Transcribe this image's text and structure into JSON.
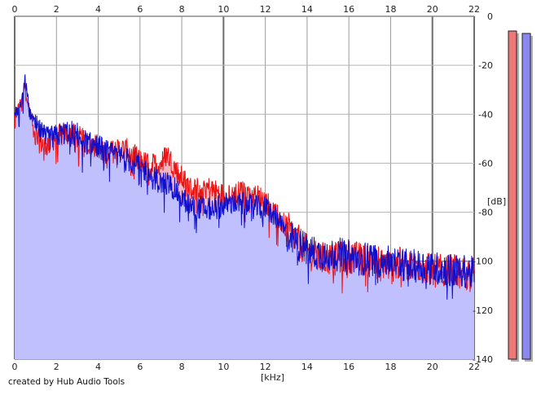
{
  "chart_data": {
    "type": "area",
    "xlabel": "[kHz]",
    "ylabel": "[dB]",
    "xlim": [
      0,
      22
    ],
    "ylim": [
      -140,
      0
    ],
    "x_ticks": [
      0,
      2,
      4,
      6,
      8,
      10,
      12,
      14,
      16,
      18,
      20,
      22
    ],
    "y_ticks": [
      0,
      -20,
      -40,
      -60,
      -80,
      -100,
      -120,
      -140
    ],
    "grid": true,
    "series": [
      {
        "color": "#ee1111",
        "x": [
          0,
          0.2,
          0.4,
          0.5,
          0.7,
          1,
          1.5,
          2,
          2.5,
          3,
          3.5,
          4,
          4.5,
          5,
          5.5,
          6,
          6.5,
          7,
          7.3,
          7.6,
          8,
          8.5,
          9,
          9.5,
          10,
          10.5,
          11,
          11.5,
          12,
          12.5,
          13,
          13.5,
          14,
          14.5,
          15,
          15.5,
          16,
          16.5,
          17,
          17.5,
          18,
          18.5,
          19,
          19.5,
          20,
          20.5,
          21,
          21.5,
          22
        ],
        "values": [
          -40,
          -37,
          -33,
          -28,
          -38,
          -50,
          -53,
          -49,
          -48,
          -49,
          -52,
          -53,
          -56,
          -54,
          -55,
          -59,
          -61,
          -60,
          -56,
          -61,
          -66,
          -71,
          -69,
          -71,
          -73,
          -72,
          -72,
          -73,
          -75,
          -81,
          -86,
          -91,
          -96,
          -99,
          -99,
          -99,
          -98,
          -99,
          -99,
          -100,
          -102,
          -101,
          -102,
          -102,
          -104,
          -104,
          -104,
          -105,
          -105
        ]
      },
      {
        "color": "#1010cc",
        "x": [
          0,
          0.2,
          0.4,
          0.5,
          0.7,
          1,
          1.5,
          2,
          2.5,
          3,
          3.5,
          4,
          4.5,
          5,
          5.5,
          6,
          6.5,
          7,
          7.3,
          7.6,
          8,
          8.5,
          9,
          9.5,
          10,
          10.5,
          11,
          11.5,
          12,
          12.5,
          13,
          13.5,
          14,
          14.5,
          15,
          15.5,
          16,
          16.5,
          17,
          17.5,
          18,
          18.5,
          19,
          19.5,
          20,
          20.5,
          21,
          21.5,
          22
        ],
        "values": [
          -40,
          -38,
          -32,
          -26,
          -38,
          -45,
          -50,
          -49,
          -47,
          -48,
          -52,
          -53,
          -56,
          -57,
          -59,
          -61,
          -65,
          -68,
          -68,
          -70,
          -74,
          -78,
          -78,
          -79,
          -77,
          -76,
          -77,
          -78,
          -78,
          -82,
          -89,
          -93,
          -95,
          -97,
          -97,
          -97,
          -98,
          -99,
          -99,
          -100,
          -100,
          -101,
          -102,
          -102,
          -103,
          -103,
          -104,
          -104,
          -105
        ]
      }
    ],
    "fill_color": "#c0c0ff",
    "overlap_fill_color": "#f6b8c0",
    "level_meters": [
      {
        "color": "#ee7777",
        "value": -6
      },
      {
        "color": "#8888ee",
        "value": -7
      }
    ]
  },
  "credit": "created by Hub Audio Tools"
}
